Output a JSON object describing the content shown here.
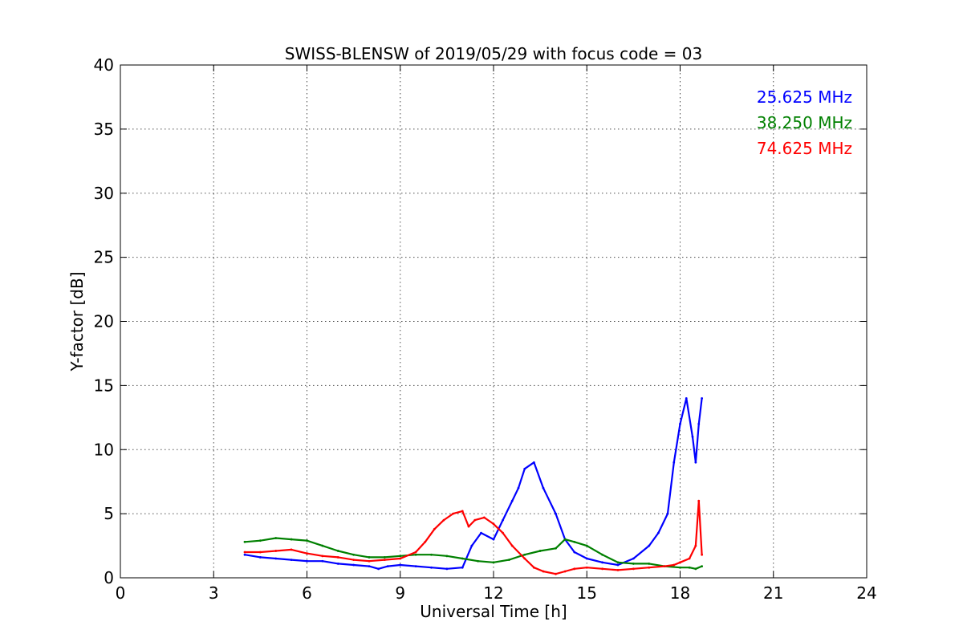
{
  "chart_data": {
    "type": "line",
    "title": "SWISS-BLENSW of 2019/05/29 with focus code = 03",
    "xlabel": "Universal Time [h]",
    "ylabel": "Y-factor [dB]",
    "xlim": [
      0,
      24
    ],
    "ylim": [
      0,
      40
    ],
    "xticks": [
      0,
      3,
      6,
      9,
      12,
      15,
      18,
      21,
      24
    ],
    "yticks": [
      0,
      5,
      10,
      15,
      20,
      25,
      30,
      35,
      40
    ],
    "xtick_labels": [
      "0",
      "3",
      "6",
      "9",
      "12",
      "15",
      "18",
      "21",
      "24"
    ],
    "ytick_labels": [
      "0",
      "5",
      "10",
      "15",
      "20",
      "25",
      "30",
      "35",
      "40"
    ],
    "grid": true,
    "legend_position": "top-right",
    "series": [
      {
        "name": "25.625 MHz",
        "color": "#0000ff",
        "x": [
          4.0,
          4.5,
          5.0,
          5.5,
          6.0,
          6.5,
          7.0,
          7.5,
          8.0,
          8.3,
          8.6,
          9.0,
          9.5,
          10.0,
          10.5,
          11.0,
          11.3,
          11.6,
          12.0,
          12.3,
          12.6,
          12.8,
          13.0,
          13.3,
          13.6,
          14.0,
          14.3,
          14.6,
          15.0,
          15.5,
          16.0,
          16.5,
          17.0,
          17.3,
          17.6,
          17.8,
          18.0,
          18.2,
          18.4,
          18.5,
          18.6,
          18.7
        ],
        "y": [
          1.8,
          1.6,
          1.5,
          1.4,
          1.3,
          1.3,
          1.1,
          1.0,
          0.9,
          0.7,
          0.9,
          1.0,
          0.9,
          0.8,
          0.7,
          0.8,
          2.5,
          3.5,
          3.0,
          4.5,
          6.0,
          7.0,
          8.5,
          9.0,
          7.0,
          5.0,
          3.0,
          2.0,
          1.5,
          1.2,
          1.0,
          1.5,
          2.5,
          3.5,
          5.0,
          9.0,
          12.0,
          14.0,
          11.0,
          9.0,
          12.0,
          14.0
        ]
      },
      {
        "name": "38.250 MHz",
        "color": "#008000",
        "x": [
          4.0,
          4.5,
          5.0,
          5.5,
          6.0,
          6.5,
          7.0,
          7.5,
          8.0,
          8.5,
          9.0,
          9.5,
          10.0,
          10.5,
          11.0,
          11.5,
          12.0,
          12.5,
          13.0,
          13.5,
          14.0,
          14.3,
          14.6,
          15.0,
          15.5,
          16.0,
          16.5,
          17.0,
          17.5,
          18.0,
          18.3,
          18.5,
          18.7
        ],
        "y": [
          2.8,
          2.9,
          3.1,
          3.0,
          2.9,
          2.5,
          2.1,
          1.8,
          1.6,
          1.6,
          1.7,
          1.8,
          1.8,
          1.7,
          1.5,
          1.3,
          1.2,
          1.4,
          1.8,
          2.1,
          2.3,
          3.0,
          2.8,
          2.5,
          1.8,
          1.2,
          1.1,
          1.1,
          0.9,
          0.8,
          0.8,
          0.7,
          0.9
        ]
      },
      {
        "name": "74.625 MHz",
        "color": "#ff0000",
        "x": [
          4.0,
          4.5,
          5.0,
          5.5,
          6.0,
          6.5,
          7.0,
          7.5,
          8.0,
          8.5,
          9.0,
          9.5,
          9.8,
          10.1,
          10.4,
          10.7,
          11.0,
          11.2,
          11.4,
          11.7,
          12.0,
          12.3,
          12.6,
          13.0,
          13.3,
          13.6,
          14.0,
          14.3,
          14.6,
          15.0,
          15.5,
          16.0,
          16.5,
          17.0,
          17.5,
          17.8,
          18.0,
          18.3,
          18.5,
          18.6,
          18.7
        ],
        "y": [
          2.0,
          2.0,
          2.1,
          2.2,
          1.9,
          1.7,
          1.6,
          1.4,
          1.3,
          1.4,
          1.5,
          2.0,
          2.8,
          3.8,
          4.5,
          5.0,
          5.2,
          4.0,
          4.5,
          4.7,
          4.2,
          3.5,
          2.5,
          1.5,
          0.8,
          0.5,
          0.3,
          0.5,
          0.7,
          0.8,
          0.7,
          0.6,
          0.7,
          0.8,
          0.9,
          1.0,
          1.2,
          1.5,
          2.5,
          6.0,
          1.8
        ]
      }
    ]
  }
}
